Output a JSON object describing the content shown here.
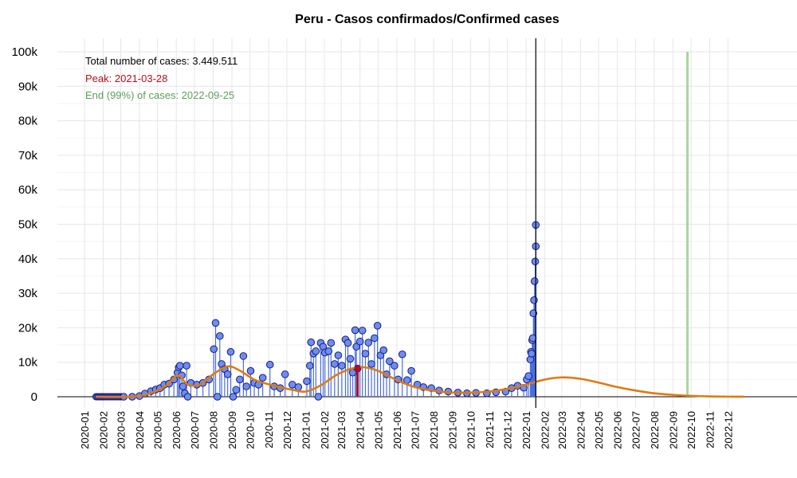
{
  "chart_data": {
    "type": "scatter",
    "title": "Peru - Casos confirmados/Confirmed cases",
    "xlabel": "",
    "ylabel": "",
    "ylim": [
      0,
      100000
    ],
    "y_ticks": [
      {
        "value": 0,
        "label": "0"
      },
      {
        "value": 10000,
        "label": "10k"
      },
      {
        "value": 20000,
        "label": "20k"
      },
      {
        "value": 30000,
        "label": "30k"
      },
      {
        "value": 40000,
        "label": "40k"
      },
      {
        "value": 50000,
        "label": "50k"
      },
      {
        "value": 60000,
        "label": "60k"
      },
      {
        "value": 70000,
        "label": "70k"
      },
      {
        "value": 80000,
        "label": "80k"
      },
      {
        "value": 90000,
        "label": "90k"
      },
      {
        "value": 100000,
        "label": "100k"
      }
    ],
    "x_ticks": [
      "2020-01",
      "2020-02",
      "2020-03",
      "2020-04",
      "2020-05",
      "2020-06",
      "2020-07",
      "2020-08",
      "2020-09",
      "2020-10",
      "2020-11",
      "2020-12",
      "2021-01",
      "2021-02",
      "2021-03",
      "2021-04",
      "2021-05",
      "2021-06",
      "2021-07",
      "2021-08",
      "2021-09",
      "2021-10",
      "2021-11",
      "2021-12",
      "2022-01",
      "2022-02",
      "2022-03",
      "2022-04",
      "2022-05",
      "2022-06",
      "2022-07",
      "2022-08",
      "2022-09",
      "2022-10",
      "2022-11",
      "2022-12"
    ],
    "x_domain_start": "2020-01-01",
    "grid": true,
    "annotations": {
      "total": "Total number of cases: 3.449.511",
      "peak": "Peak: 2021-03-28",
      "end": "End (99%) of cases: 2022-09-25"
    },
    "peak_date": "2021-03-28",
    "end_date": "2022-09-25",
    "current_date": "2022-01-17",
    "colors": {
      "points_fill": "#6b8ff0",
      "points_stroke": "#1a1a80",
      "stems": "#4a6ee0",
      "fit_line": "#e07a10",
      "peak": "#b01020",
      "end_line": "#a9d6a0",
      "end_text": "#5aa05a",
      "current_line": "#000000",
      "grid": "#e6e6e6"
    },
    "series": [
      {
        "kind": "daily_cases",
        "points": [
          [
            "2020-03-06",
            0
          ],
          [
            "2020-03-20",
            0
          ],
          [
            "2020-04-01",
            200
          ],
          [
            "2020-04-10",
            900
          ],
          [
            "2020-04-20",
            1600
          ],
          [
            "2020-04-28",
            2100
          ],
          [
            "2020-05-05",
            2500
          ],
          [
            "2020-05-12",
            3500
          ],
          [
            "2020-05-20",
            3800
          ],
          [
            "2020-05-28",
            5000
          ],
          [
            "2020-06-03",
            7000
          ],
          [
            "2020-06-05",
            8500
          ],
          [
            "2020-06-07",
            9000
          ],
          [
            "2020-06-10",
            6200
          ],
          [
            "2020-06-12",
            3000
          ],
          [
            "2020-06-15",
            1000
          ],
          [
            "2020-06-18",
            9000
          ],
          [
            "2020-06-20",
            0
          ],
          [
            "2020-06-25",
            4000
          ],
          [
            "2020-07-05",
            3500
          ],
          [
            "2020-07-15",
            4000
          ],
          [
            "2020-07-25",
            5000
          ],
          [
            "2020-08-02",
            13800
          ],
          [
            "2020-08-05",
            21400
          ],
          [
            "2020-08-08",
            0
          ],
          [
            "2020-08-12",
            17600
          ],
          [
            "2020-08-15",
            9500
          ],
          [
            "2020-08-20",
            8000
          ],
          [
            "2020-08-25",
            6500
          ],
          [
            "2020-08-30",
            13000
          ],
          [
            "2020-09-03",
            0
          ],
          [
            "2020-09-08",
            2000
          ],
          [
            "2020-09-14",
            5000
          ],
          [
            "2020-09-20",
            11800
          ],
          [
            "2020-09-25",
            3000
          ],
          [
            "2020-10-02",
            7500
          ],
          [
            "2020-10-08",
            4000
          ],
          [
            "2020-10-15",
            3500
          ],
          [
            "2020-10-22",
            5500
          ],
          [
            "2020-11-03",
            9300
          ],
          [
            "2020-11-10",
            3000
          ],
          [
            "2020-11-20",
            2500
          ],
          [
            "2020-11-28",
            6500
          ],
          [
            "2020-12-10",
            3500
          ],
          [
            "2020-12-20",
            2800
          ],
          [
            "2021-01-03",
            4500
          ],
          [
            "2021-01-08",
            9000
          ],
          [
            "2021-01-10",
            15800
          ],
          [
            "2021-01-14",
            12500
          ],
          [
            "2021-01-18",
            13200
          ],
          [
            "2021-01-22",
            0
          ],
          [
            "2021-01-26",
            15600
          ],
          [
            "2021-01-30",
            14500
          ],
          [
            "2021-02-02",
            12800
          ],
          [
            "2021-02-08",
            13200
          ],
          [
            "2021-02-12",
            15600
          ],
          [
            "2021-02-18",
            9500
          ],
          [
            "2021-02-24",
            12000
          ],
          [
            "2021-03-02",
            9000
          ],
          [
            "2021-03-08",
            16600
          ],
          [
            "2021-03-12",
            15600
          ],
          [
            "2021-03-16",
            11000
          ],
          [
            "2021-03-20",
            7000
          ],
          [
            "2021-03-24",
            19300
          ],
          [
            "2021-03-26",
            14500
          ],
          [
            "2021-03-28",
            8200
          ],
          [
            "2021-04-01",
            16000
          ],
          [
            "2021-04-05",
            19200
          ],
          [
            "2021-04-10",
            12500
          ],
          [
            "2021-04-15",
            15700
          ],
          [
            "2021-04-20",
            9500
          ],
          [
            "2021-04-25",
            17000
          ],
          [
            "2021-04-30",
            20600
          ],
          [
            "2021-05-05",
            12000
          ],
          [
            "2021-05-10",
            13500
          ],
          [
            "2021-05-15",
            6500
          ],
          [
            "2021-05-20",
            10300
          ],
          [
            "2021-05-28",
            9000
          ],
          [
            "2021-06-03",
            5000
          ],
          [
            "2021-06-10",
            12300
          ],
          [
            "2021-06-18",
            4800
          ],
          [
            "2021-06-25",
            7500
          ],
          [
            "2021-07-05",
            3500
          ],
          [
            "2021-07-15",
            2800
          ],
          [
            "2021-07-28",
            2500
          ],
          [
            "2021-08-10",
            1800
          ],
          [
            "2021-08-25",
            1500
          ],
          [
            "2021-09-10",
            1200
          ],
          [
            "2021-09-25",
            1000
          ],
          [
            "2021-10-10",
            1100
          ],
          [
            "2021-10-28",
            1000
          ],
          [
            "2021-11-12",
            1300
          ],
          [
            "2021-11-28",
            1500
          ],
          [
            "2021-12-08",
            2500
          ],
          [
            "2021-12-18",
            3200
          ],
          [
            "2021-12-28",
            2600
          ],
          [
            "2022-01-02",
            5000
          ],
          [
            "2022-01-05",
            6000
          ],
          [
            "2022-01-08",
            10800
          ],
          [
            "2022-01-09",
            13000
          ],
          [
            "2022-01-10",
            12500
          ],
          [
            "2022-01-11",
            16400
          ],
          [
            "2022-01-12",
            17000
          ],
          [
            "2022-01-13",
            24200
          ],
          [
            "2022-01-14",
            28000
          ],
          [
            "2022-01-15",
            33500
          ],
          [
            "2022-01-16",
            39200
          ],
          [
            "2022-01-17",
            43600
          ],
          [
            "2022-01-17",
            49800
          ]
        ]
      },
      {
        "kind": "fitted_curve",
        "points": [
          [
            "2020-01-20",
            0
          ],
          [
            "2020-03-15",
            0
          ],
          [
            "2020-04-15",
            800
          ],
          [
            "2020-05-15",
            3200
          ],
          [
            "2020-06-03",
            6200
          ],
          [
            "2020-06-20",
            3500
          ],
          [
            "2020-07-10",
            3500
          ],
          [
            "2020-08-01",
            6500
          ],
          [
            "2020-08-25",
            8800
          ],
          [
            "2020-09-15",
            7500
          ],
          [
            "2020-10-10",
            4800
          ],
          [
            "2020-11-10",
            3200
          ],
          [
            "2020-12-10",
            2000
          ],
          [
            "2021-01-01",
            1500
          ],
          [
            "2021-01-25",
            3200
          ],
          [
            "2021-02-20",
            6200
          ],
          [
            "2021-03-15",
            8000
          ],
          [
            "2021-04-05",
            8600
          ],
          [
            "2021-05-01",
            7500
          ],
          [
            "2021-06-01",
            4800
          ],
          [
            "2021-07-01",
            2800
          ],
          [
            "2021-08-01",
            1700
          ],
          [
            "2021-09-01",
            1200
          ],
          [
            "2021-10-01",
            1200
          ],
          [
            "2021-11-01",
            1500
          ],
          [
            "2021-12-01",
            2300
          ],
          [
            "2022-01-01",
            3500
          ],
          [
            "2022-02-01",
            5000
          ],
          [
            "2022-03-01",
            5600
          ],
          [
            "2022-04-01",
            5200
          ],
          [
            "2022-05-01",
            4100
          ],
          [
            "2022-06-01",
            2800
          ],
          [
            "2022-07-01",
            1800
          ],
          [
            "2022-08-01",
            1000
          ],
          [
            "2022-09-01",
            550
          ],
          [
            "2022-10-01",
            260
          ],
          [
            "2022-11-01",
            100
          ],
          [
            "2022-12-01",
            30
          ],
          [
            "2022-12-28",
            10
          ]
        ]
      }
    ]
  }
}
